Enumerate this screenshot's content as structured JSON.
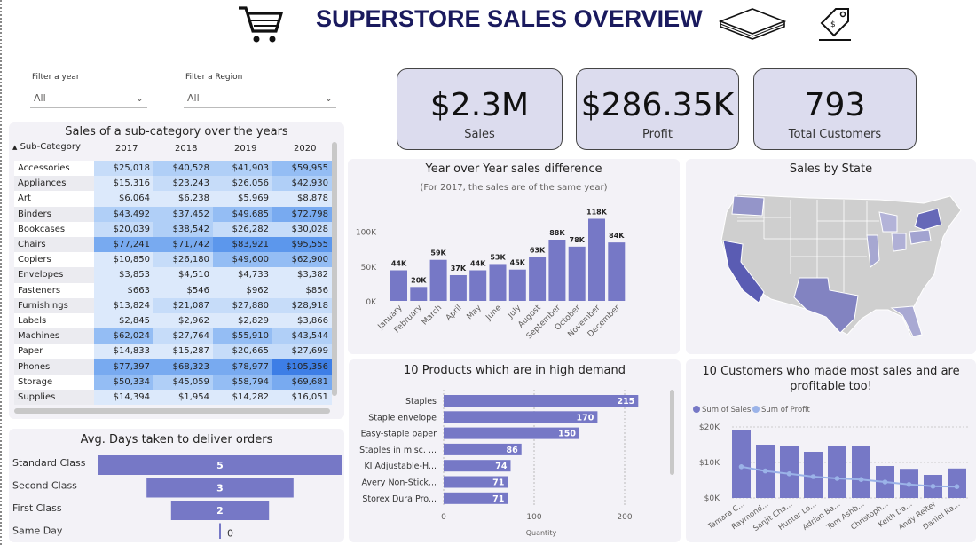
{
  "header": {
    "title": "SUPERSTORE SALES OVERVIEW"
  },
  "filters": {
    "year_label": "Filter a year",
    "year_value": "All",
    "region_label": "Filter a Region",
    "region_value": "All"
  },
  "kpis": [
    {
      "value": "$2.3M",
      "label": "Sales"
    },
    {
      "value": "$286.35K",
      "label": "Profit"
    },
    {
      "value": "793",
      "label": "Total Customers"
    }
  ],
  "matrix": {
    "title": "Sales of a sub-category over the years",
    "col_header": "Sub-Category",
    "years": [
      "2017",
      "2018",
      "2019",
      "2020"
    ],
    "rows": [
      {
        "cat": "Accessories",
        "vals": [
          "$25,018",
          "$40,528",
          "$41,903",
          "$59,955"
        ],
        "shade": [
          1,
          2,
          2,
          3
        ]
      },
      {
        "cat": "Appliances",
        "vals": [
          "$15,316",
          "$23,243",
          "$26,056",
          "$42,930"
        ],
        "shade": [
          0,
          1,
          1,
          2
        ]
      },
      {
        "cat": "Art",
        "vals": [
          "$6,064",
          "$6,238",
          "$5,969",
          "$8,878"
        ],
        "shade": [
          0,
          0,
          0,
          0
        ]
      },
      {
        "cat": "Binders",
        "vals": [
          "$43,492",
          "$37,452",
          "$49,685",
          "$72,798"
        ],
        "shade": [
          2,
          2,
          3,
          4
        ]
      },
      {
        "cat": "Bookcases",
        "vals": [
          "$20,039",
          "$38,542",
          "$26,282",
          "$30,028"
        ],
        "shade": [
          1,
          2,
          1,
          1
        ]
      },
      {
        "cat": "Chairs",
        "vals": [
          "$77,241",
          "$71,742",
          "$83,921",
          "$95,555"
        ],
        "shade": [
          4,
          4,
          5,
          5
        ]
      },
      {
        "cat": "Copiers",
        "vals": [
          "$10,850",
          "$26,180",
          "$49,600",
          "$62,900"
        ],
        "shade": [
          0,
          1,
          3,
          3
        ]
      },
      {
        "cat": "Envelopes",
        "vals": [
          "$3,853",
          "$4,510",
          "$4,733",
          "$3,382"
        ],
        "shade": [
          0,
          0,
          0,
          0
        ]
      },
      {
        "cat": "Fasteners",
        "vals": [
          "$663",
          "$546",
          "$962",
          "$856"
        ],
        "shade": [
          0,
          0,
          0,
          0
        ]
      },
      {
        "cat": "Furnishings",
        "vals": [
          "$13,824",
          "$21,087",
          "$27,880",
          "$28,918"
        ],
        "shade": [
          0,
          1,
          1,
          1
        ]
      },
      {
        "cat": "Labels",
        "vals": [
          "$2,845",
          "$2,962",
          "$2,829",
          "$3,866"
        ],
        "shade": [
          0,
          0,
          0,
          0
        ]
      },
      {
        "cat": "Machines",
        "vals": [
          "$62,024",
          "$27,764",
          "$55,910",
          "$43,544"
        ],
        "shade": [
          3,
          1,
          3,
          2
        ]
      },
      {
        "cat": "Paper",
        "vals": [
          "$14,833",
          "$15,287",
          "$20,665",
          "$27,699"
        ],
        "shade": [
          0,
          0,
          1,
          1
        ]
      },
      {
        "cat": "Phones",
        "vals": [
          "$77,397",
          "$68,323",
          "$78,977",
          "$105,356"
        ],
        "shade": [
          4,
          4,
          4,
          6
        ]
      },
      {
        "cat": "Storage",
        "vals": [
          "$50,334",
          "$45,059",
          "$58,794",
          "$69,681"
        ],
        "shade": [
          3,
          2,
          3,
          4
        ]
      },
      {
        "cat": "Supplies",
        "vals": [
          "$14,394",
          "$1,954",
          "$14,282",
          "$16,051"
        ],
        "shade": [
          0,
          0,
          0,
          0
        ]
      }
    ]
  },
  "colors": {
    "bar": "#7678c6",
    "line": "#9bb3e8",
    "kpi_bg": "#dcdcee",
    "card_bg": "#f3f2f7",
    "title_navy": "#1a1a5e",
    "shades": [
      "#dce9fb",
      "#c6dcf9",
      "#b0cff7",
      "#94bdf4",
      "#78aaf0",
      "#5c97ec",
      "#3d7ee6"
    ]
  },
  "chart_data": [
    {
      "id": "delivery",
      "type": "bar",
      "orientation": "horizontal",
      "title": "Avg. Days taken to deliver orders",
      "categories": [
        "Standard Class",
        "Second Class",
        "First Class",
        "Same Day"
      ],
      "values": [
        5,
        3,
        2,
        0
      ]
    },
    {
      "id": "yoy",
      "type": "bar",
      "title": "Year over Year sales difference",
      "subtitle": "(For 2017, the sales are of the same year)",
      "categories": [
        "January",
        "February",
        "March",
        "April",
        "May",
        "June",
        "July",
        "August",
        "September",
        "October",
        "November",
        "December"
      ],
      "values": [
        44,
        20,
        59,
        37,
        44,
        53,
        45,
        63,
        88,
        78,
        118,
        84
      ],
      "labels": [
        "44K",
        "20K",
        "59K",
        "37K",
        "44K",
        "53K",
        "45K",
        "63K",
        "88K",
        "78K",
        "118K",
        "84K"
      ],
      "yticks": [
        "0K",
        "50K",
        "100K"
      ],
      "ylim": [
        0,
        125
      ]
    },
    {
      "id": "products",
      "type": "bar",
      "orientation": "horizontal",
      "title": "10 Products which are in high demand",
      "categories": [
        "Staples",
        "Staple envelope",
        "Easy-staple paper",
        "Staples in misc. ...",
        "KI Adjustable-H...",
        "Avery Non-Stick...",
        "Storex Dura Pro..."
      ],
      "values": [
        215,
        170,
        150,
        86,
        74,
        71,
        71
      ],
      "xlabel": "Quantity",
      "xticks": [
        "0",
        "100",
        "200"
      ],
      "xlim": [
        0,
        250
      ]
    },
    {
      "id": "customers",
      "type": "bar",
      "title": "10 Customers who made most sales and are profitable too!",
      "categories": [
        "Tamara C...",
        "Raymond...",
        "Sanjit Cha...",
        "Hunter Lo...",
        "Adrian Ba...",
        "Tom Ashb...",
        "Christoph...",
        "Keith Da...",
        "Andy Reiter",
        "Daniel Ra..."
      ],
      "series": [
        {
          "name": "Sum of Sales",
          "values": [
            19,
            15,
            14.5,
            13,
            14.5,
            14.6,
            9,
            8.2,
            6.5,
            8.3
          ]
        },
        {
          "name": "Sum of Profit",
          "values": [
            8.8,
            7.6,
            6.8,
            6.0,
            5.5,
            5.2,
            4.5,
            3.8,
            3.3,
            3.2
          ]
        }
      ],
      "yticks": [
        "$0K",
        "$10K",
        "$20K"
      ],
      "ylim": [
        0,
        22
      ]
    },
    {
      "id": "map",
      "type": "heatmap",
      "title": "Sales by State",
      "highlight": [
        "California",
        "New York",
        "Texas",
        "Washington"
      ]
    }
  ]
}
